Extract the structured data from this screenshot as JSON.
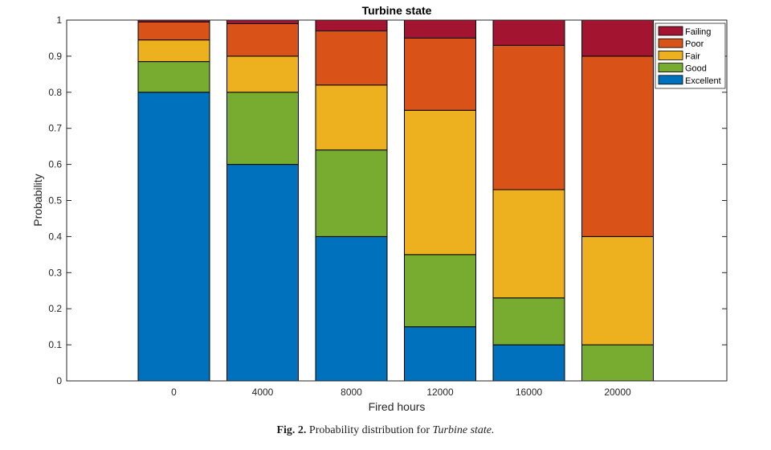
{
  "chart_data": {
    "type": "bar",
    "stacked": true,
    "title": "Turbine state",
    "xlabel": "Fired hours",
    "ylabel": "Probability",
    "categories": [
      "0",
      "4000",
      "8000",
      "12000",
      "16000",
      "20000"
    ],
    "ylim": [
      0,
      1
    ],
    "yticks": [
      "0",
      "0.1",
      "0.2",
      "0.3",
      "0.4",
      "0.5",
      "0.6",
      "0.7",
      "0.8",
      "0.9",
      "1"
    ],
    "legend_position": "top-right",
    "series": [
      {
        "name": "Excellent",
        "color": "#0072BD",
        "values": [
          0.8,
          0.6,
          0.4,
          0.15,
          0.1,
          0.0
        ]
      },
      {
        "name": "Good",
        "color": "#77AC30",
        "values": [
          0.085,
          0.2,
          0.24,
          0.2,
          0.13,
          0.1
        ]
      },
      {
        "name": "Fair",
        "color": "#EDB120",
        "values": [
          0.06,
          0.1,
          0.18,
          0.4,
          0.3,
          0.3
        ]
      },
      {
        "name": "Poor",
        "color": "#D95319",
        "values": [
          0.05,
          0.09,
          0.15,
          0.2,
          0.4,
          0.5
        ]
      },
      {
        "name": "Failing",
        "color": "#A2142F",
        "values": [
          0.005,
          0.01,
          0.03,
          0.05,
          0.07,
          0.1
        ]
      }
    ],
    "legend_order": [
      "Failing",
      "Poor",
      "Fair",
      "Good",
      "Excellent"
    ]
  },
  "caption": {
    "label": "Fig. 2.",
    "text": "Probability distribution for",
    "emphasis": "Turbine state."
  }
}
